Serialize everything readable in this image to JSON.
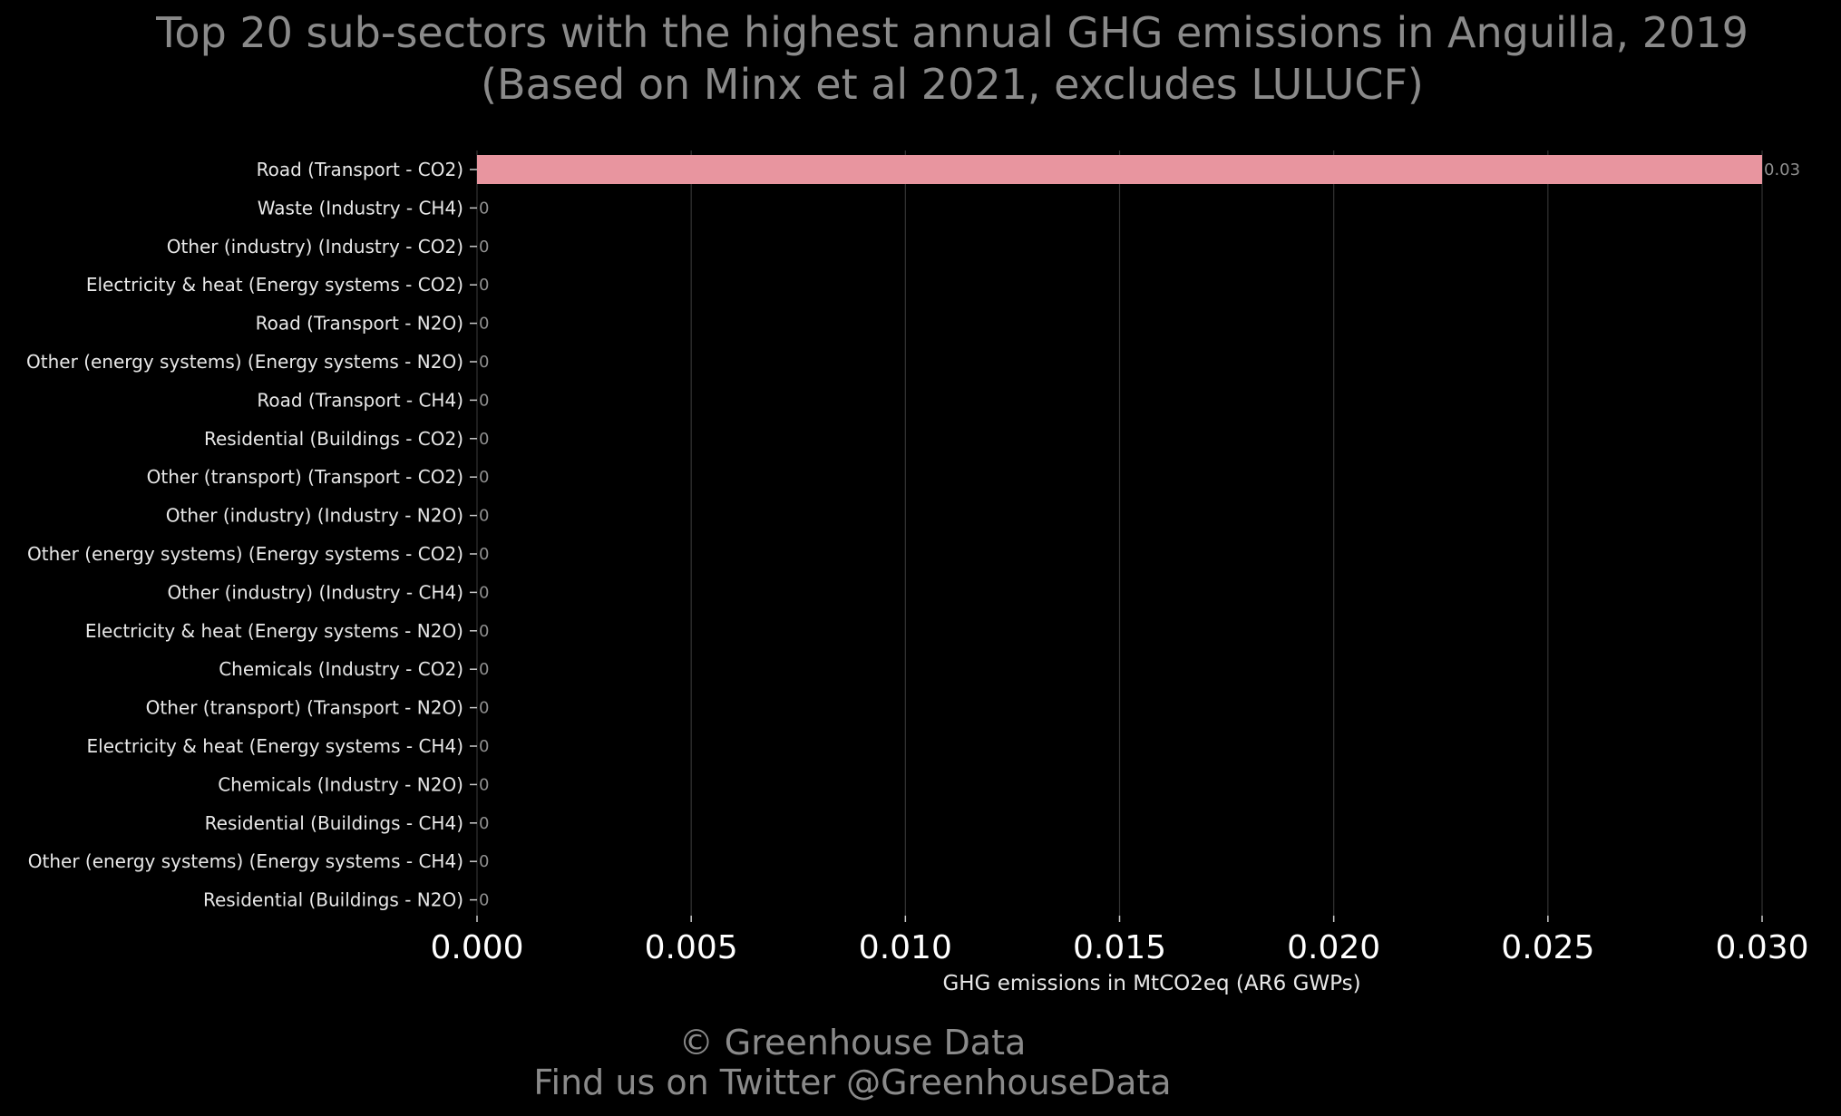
{
  "chart_data": {
    "type": "bar",
    "orientation": "horizontal",
    "title": "Top 20 sub-sectors with the highest annual GHG emissions in Anguilla, 2019",
    "subtitle": "(Based on Minx et al 2021, excludes LULUCF)",
    "xlabel": "GHG emissions in MtCO2eq (AR6 GWPs)",
    "ylabel": "",
    "xlim": [
      0,
      0.03
    ],
    "x_ticks": [
      "0.000",
      "0.005",
      "0.010",
      "0.015",
      "0.020",
      "0.025",
      "0.030"
    ],
    "grid": "vertical",
    "bar_color": "#e8959f",
    "categories": [
      "Road (Transport - CO2)",
      "Waste (Industry - CH4)",
      "Other (industry) (Industry - CO2)",
      "Electricity & heat (Energy systems - CO2)",
      "Road (Transport - N2O)",
      "Other (energy systems) (Energy systems - N2O)",
      "Road (Transport - CH4)",
      "Residential (Buildings - CO2)",
      "Other (transport) (Transport - CO2)",
      "Other (industry) (Industry - N2O)",
      "Other (energy systems) (Energy systems - CO2)",
      "Other (industry) (Industry - CH4)",
      "Electricity & heat (Energy systems - N2O)",
      "Chemicals (Industry - CO2)",
      "Other (transport) (Transport - N2O)",
      "Electricity & heat (Energy systems - CH4)",
      "Chemicals (Industry - N2O)",
      "Residential (Buildings - CH4)",
      "Other (energy systems) (Energy systems - CH4)",
      "Residential (Buildings - N2O)"
    ],
    "values": [
      0.03,
      0,
      0,
      0,
      0,
      0,
      0,
      0,
      0,
      0,
      0,
      0,
      0,
      0,
      0,
      0,
      0,
      0,
      0,
      0
    ],
    "data_labels": [
      "0.03",
      "0",
      "0",
      "0",
      "0",
      "0",
      "0",
      "0",
      "0",
      "0",
      "0",
      "0",
      "0",
      "0",
      "0",
      "0",
      "0",
      "0",
      "0",
      "0"
    ]
  },
  "footer": {
    "copyright": "© Greenhouse Data",
    "twitter": "Find us on Twitter @GreenhouseData"
  },
  "colors": {
    "background": "#000000",
    "title": "#8a8a8a",
    "grid": "#333333",
    "bar": "#e8959f"
  }
}
